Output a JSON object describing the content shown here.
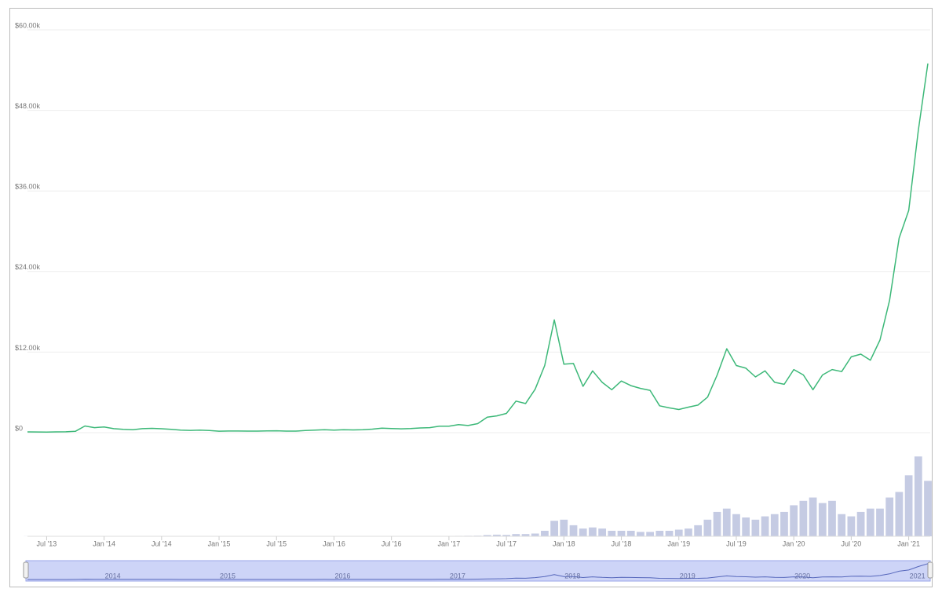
{
  "chart_data": {
    "type": "line",
    "x": [
      "2013-05",
      "2013-06",
      "2013-07",
      "2013-08",
      "2013-09",
      "2013-10",
      "2013-11",
      "2013-12",
      "2014-01",
      "2014-02",
      "2014-03",
      "2014-04",
      "2014-05",
      "2014-06",
      "2014-07",
      "2014-08",
      "2014-09",
      "2014-10",
      "2014-11",
      "2014-12",
      "2015-01",
      "2015-02",
      "2015-03",
      "2015-04",
      "2015-05",
      "2015-06",
      "2015-07",
      "2015-08",
      "2015-09",
      "2015-10",
      "2015-11",
      "2015-12",
      "2016-01",
      "2016-02",
      "2016-03",
      "2016-04",
      "2016-05",
      "2016-06",
      "2016-07",
      "2016-08",
      "2016-09",
      "2016-10",
      "2016-11",
      "2016-12",
      "2017-01",
      "2017-02",
      "2017-03",
      "2017-04",
      "2017-05",
      "2017-06",
      "2017-07",
      "2017-08",
      "2017-09",
      "2017-10",
      "2017-11",
      "2017-12",
      "2018-01",
      "2018-02",
      "2018-03",
      "2018-04",
      "2018-05",
      "2018-06",
      "2018-07",
      "2018-08",
      "2018-09",
      "2018-10",
      "2018-11",
      "2018-12",
      "2019-01",
      "2019-02",
      "2019-03",
      "2019-04",
      "2019-05",
      "2019-06",
      "2019-07",
      "2019-08",
      "2019-09",
      "2019-10",
      "2019-11",
      "2019-12",
      "2020-01",
      "2020-02",
      "2020-03",
      "2020-04",
      "2020-05",
      "2020-06",
      "2020-07",
      "2020-08",
      "2020-09",
      "2020-10",
      "2020-11",
      "2020-12",
      "2021-01",
      "2021-02",
      "2021-03"
    ],
    "series": [
      {
        "color": "#3cb878",
        "values": [
          120,
          100,
          90,
          120,
          130,
          200,
          1000,
          750,
          850,
          600,
          500,
          450,
          600,
          640,
          590,
          500,
          390,
          340,
          380,
          320,
          220,
          250,
          245,
          235,
          235,
          260,
          285,
          230,
          237,
          315,
          380,
          430,
          370,
          435,
          415,
          450,
          530,
          670,
          625,
          575,
          610,
          700,
          745,
          960,
          970,
          1190,
          1070,
          1350,
          2300,
          2500,
          2870,
          4700,
          4340,
          6470,
          10000,
          16800,
          10200,
          10300,
          6900,
          9200,
          7500,
          6400,
          7700,
          7000,
          6600,
          6300,
          4000,
          3700,
          3450,
          3800,
          4100,
          5300,
          8600,
          12500,
          10000,
          9600,
          8300,
          9200,
          7500,
          7200,
          9400,
          8600,
          6400,
          8600,
          9400,
          9100,
          11300,
          11700,
          10800,
          13800,
          19700,
          29000,
          33100,
          45000,
          55000
        ]
      }
    ],
    "volume": {
      "color": "#c5cbe3",
      "ylim": [
        0,
        80
      ],
      "values": [
        0.1,
        0.1,
        0.1,
        0.1,
        0.1,
        0.1,
        0.2,
        0.2,
        0.1,
        0.1,
        0.1,
        0.1,
        0.1,
        0.1,
        0.1,
        0.1,
        0.1,
        0.1,
        0.1,
        0.1,
        0.1,
        0.1,
        0.1,
        0.1,
        0.1,
        0.1,
        0.1,
        0.1,
        0.1,
        0.1,
        0.1,
        0.1,
        0.1,
        0.1,
        0.1,
        0.1,
        0.1,
        0.2,
        0.2,
        0.2,
        0.2,
        0.2,
        0.2,
        0.3,
        0.3,
        0.4,
        0.5,
        0.6,
        1.2,
        1.5,
        1.3,
        2,
        2,
        2.5,
        5,
        14,
        15,
        10,
        7,
        8,
        7,
        5,
        5,
        5,
        4,
        4,
        5,
        5,
        6,
        7,
        10,
        15,
        22,
        25,
        20,
        17,
        15,
        18,
        20,
        22,
        28,
        32,
        35,
        30,
        32,
        20,
        18,
        22,
        25,
        25,
        35,
        40,
        55,
        72,
        50
      ]
    },
    "xlim": [
      "2013-05",
      "2021-03"
    ],
    "ylim": [
      0,
      60000
    ],
    "yticks": [
      {
        "value": 0,
        "label": "$0"
      },
      {
        "value": 12000,
        "label": "$12.00k"
      },
      {
        "value": 24000,
        "label": "$24.00k"
      },
      {
        "value": 36000,
        "label": "$36.00k"
      },
      {
        "value": 48000,
        "label": "$48.00k"
      },
      {
        "value": 60000,
        "label": "$60.00k"
      }
    ],
    "xticks": [
      {
        "value": "2013-07",
        "label": "Jul '13"
      },
      {
        "value": "2014-01",
        "label": "Jan '14"
      },
      {
        "value": "2014-07",
        "label": "Jul '14"
      },
      {
        "value": "2015-01",
        "label": "Jan '15"
      },
      {
        "value": "2015-07",
        "label": "Jul '15"
      },
      {
        "value": "2016-01",
        "label": "Jan '16"
      },
      {
        "value": "2016-07",
        "label": "Jul '16"
      },
      {
        "value": "2017-01",
        "label": "Jan '17"
      },
      {
        "value": "2017-07",
        "label": "Jul '17"
      },
      {
        "value": "2018-01",
        "label": "Jan '18"
      },
      {
        "value": "2018-07",
        "label": "Jul '18"
      },
      {
        "value": "2019-01",
        "label": "Jan '19"
      },
      {
        "value": "2019-07",
        "label": "Jul '19"
      },
      {
        "value": "2020-01",
        "label": "Jan '20"
      },
      {
        "value": "2020-07",
        "label": "Jul '20"
      },
      {
        "value": "2021-01",
        "label": "Jan '21"
      }
    ],
    "grid": true,
    "navigator": {
      "labels": [
        "2014",
        "2015",
        "2016",
        "2017",
        "2018",
        "2019",
        "2020",
        "2021"
      ]
    }
  }
}
